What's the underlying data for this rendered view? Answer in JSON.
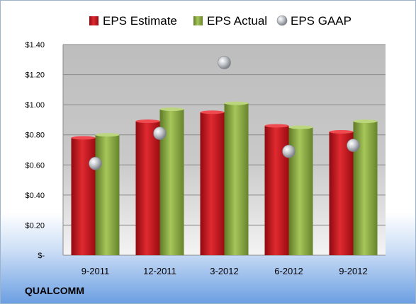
{
  "chart_data": {
    "type": "bar",
    "categories": [
      "9-2011",
      "12-2011",
      "3-2012",
      "6-2012",
      "9-2012"
    ],
    "series": [
      {
        "name": "EPS Estimate",
        "type": "bar",
        "color": "#c8141c",
        "values": [
          0.78,
          0.89,
          0.95,
          0.86,
          0.82
        ]
      },
      {
        "name": "EPS Actual",
        "type": "bar",
        "color": "#8cad44",
        "values": [
          0.8,
          0.97,
          1.01,
          0.85,
          0.89
        ]
      },
      {
        "name": "EPS GAAP",
        "type": "scatter",
        "color": "#b9bcc2",
        "values": [
          0.61,
          0.81,
          1.28,
          0.69,
          0.73
        ]
      }
    ],
    "y_ticks": [
      "$-",
      "$0.20",
      "$0.40",
      "$0.60",
      "$0.80",
      "$1.00",
      "$1.20",
      "$1.40"
    ],
    "ylim": [
      0,
      1.4
    ],
    "legend_position": "top",
    "grid": true
  },
  "brand": "QUALCOMM"
}
